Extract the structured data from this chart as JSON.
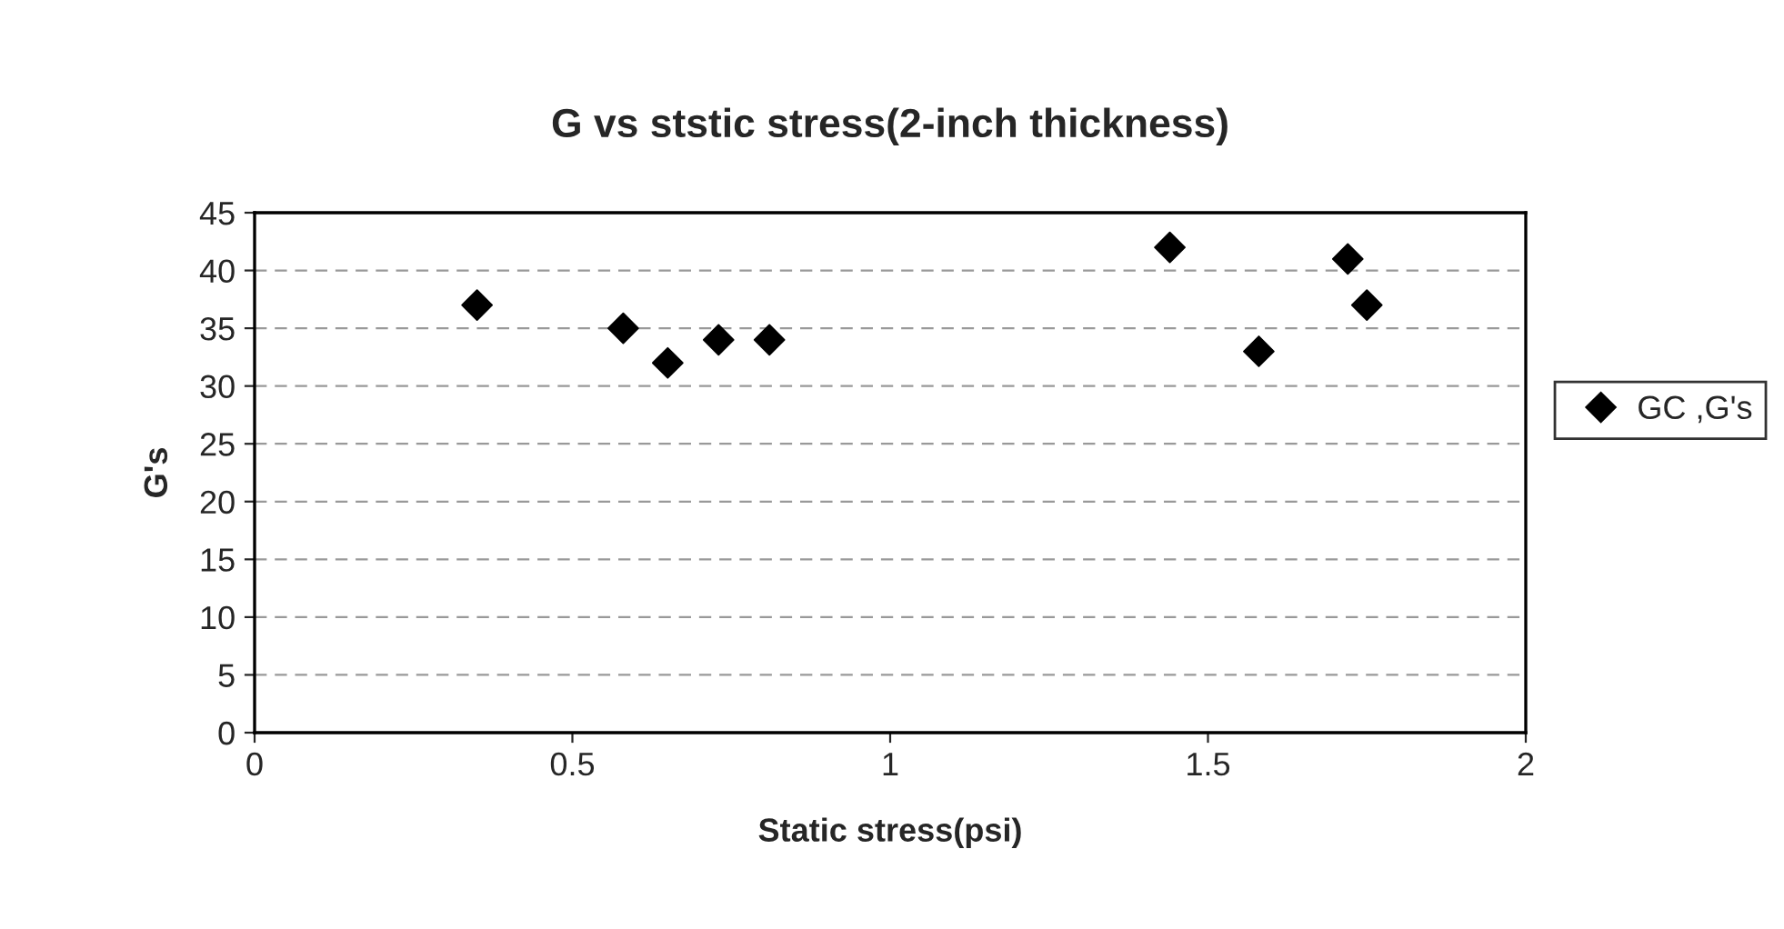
{
  "chart_data": {
    "type": "scatter",
    "title": "G vs ststic stress(2-inch thickness)",
    "xlabel": "Static stress(psi)",
    "ylabel": "G's",
    "series": [
      {
        "name": "GC ,G's",
        "color": "#000000",
        "x": [
          0.35,
          0.58,
          0.65,
          0.73,
          0.81,
          1.44,
          1.58,
          1.72,
          1.75
        ],
        "values": [
          37,
          35,
          32,
          34,
          34,
          42,
          33,
          41,
          37
        ]
      }
    ],
    "xlim": [
      0,
      2
    ],
    "xticks": [
      0,
      0.5,
      1,
      1.5,
      2
    ],
    "ylim": [
      0,
      45
    ],
    "yticks": [
      0,
      5,
      10,
      15,
      20,
      25,
      30,
      35,
      40,
      45
    ],
    "grid": "y",
    "legend": "right",
    "marker": "diamond"
  }
}
